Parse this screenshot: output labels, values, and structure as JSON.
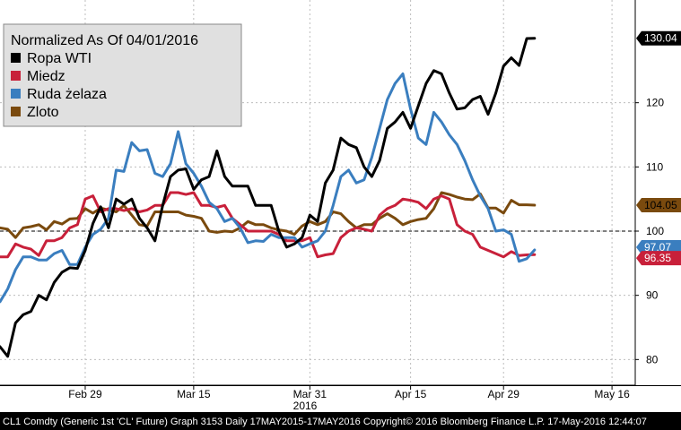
{
  "chart_data": {
    "type": "line",
    "title": "Normalized As Of 04/01/2016",
    "x_tick_labels": [
      "Feb 29",
      "Mar 15",
      "Mar 31",
      "Apr 15",
      "Apr 29",
      "May 16"
    ],
    "x_tick_positions": [
      11,
      25,
      40,
      53,
      65,
      79
    ],
    "x_range": [
      0,
      82
    ],
    "year_label": "2016",
    "y_tick_labels": [
      "80",
      "90",
      "100",
      "110",
      "120"
    ],
    "ylim": [
      76,
      136
    ],
    "reference_line": 100,
    "grid": true,
    "legend_position": "top-left",
    "series": [
      {
        "name": "Ropa WTI",
        "color": "#000000",
        "end_label": "130.04",
        "values": [
          [
            0,
            82
          ],
          [
            1,
            80.5
          ],
          [
            2,
            85.7
          ],
          [
            3,
            87
          ],
          [
            4,
            87.5
          ],
          [
            5,
            90
          ],
          [
            6,
            89.3
          ],
          [
            7,
            92
          ],
          [
            8,
            93.6
          ],
          [
            9,
            94.3
          ],
          [
            10,
            94.2
          ],
          [
            11,
            97
          ],
          [
            12,
            101.2
          ],
          [
            13,
            103.8
          ],
          [
            14,
            100.5
          ],
          [
            15,
            105
          ],
          [
            16,
            104.2
          ],
          [
            17,
            105
          ],
          [
            18,
            102
          ],
          [
            19,
            100.5
          ],
          [
            20,
            98.5
          ],
          [
            21,
            104
          ],
          [
            22,
            108.5
          ],
          [
            23,
            109.5
          ],
          [
            24,
            109.7
          ],
          [
            25,
            106.5
          ],
          [
            26,
            108
          ],
          [
            27,
            108.5
          ],
          [
            28,
            112.5
          ],
          [
            29,
            108.5
          ],
          [
            30,
            107
          ],
          [
            31,
            107
          ],
          [
            32,
            107
          ],
          [
            33,
            104
          ],
          [
            34,
            104
          ],
          [
            35,
            104
          ],
          [
            36,
            100
          ],
          [
            37,
            97.5
          ],
          [
            38,
            98
          ],
          [
            39,
            99
          ],
          [
            40,
            102.5
          ],
          [
            41,
            101.5
          ],
          [
            42,
            107.5
          ],
          [
            43,
            109.5
          ],
          [
            44,
            114.5
          ],
          [
            45,
            113.5
          ],
          [
            46,
            113
          ],
          [
            47,
            110
          ],
          [
            48,
            108.5
          ],
          [
            49,
            111
          ],
          [
            50,
            116
          ],
          [
            51,
            117
          ],
          [
            52,
            118.5
          ],
          [
            53,
            116
          ],
          [
            54,
            119.5
          ],
          [
            55,
            123
          ],
          [
            56,
            125
          ],
          [
            57,
            124.5
          ],
          [
            58,
            121.5
          ],
          [
            59,
            119
          ],
          [
            60,
            119.2
          ],
          [
            61,
            120.5
          ],
          [
            62,
            121
          ],
          [
            63,
            118.2
          ],
          [
            64,
            121.5
          ],
          [
            65,
            125.7
          ],
          [
            66,
            127
          ],
          [
            67,
            125.8
          ],
          [
            68,
            130
          ],
          [
            69,
            130.04
          ]
        ]
      },
      {
        "name": "Miedz",
        "color": "#c8203a",
        "end_label": "96.35",
        "values": [
          [
            0,
            96
          ],
          [
            1,
            96
          ],
          [
            2,
            98
          ],
          [
            3,
            97.5
          ],
          [
            4,
            97.2
          ],
          [
            5,
            96.2
          ],
          [
            6,
            98.5
          ],
          [
            7,
            98.5
          ],
          [
            8,
            99
          ],
          [
            9,
            100.5
          ],
          [
            10,
            101
          ],
          [
            11,
            105
          ],
          [
            12,
            105.5
          ],
          [
            13,
            103
          ],
          [
            14,
            103.5
          ],
          [
            15,
            103.5
          ],
          [
            16,
            103.2
          ],
          [
            17,
            103.5
          ],
          [
            18,
            103
          ],
          [
            19,
            103.3
          ],
          [
            20,
            104
          ],
          [
            21,
            104
          ],
          [
            22,
            106
          ],
          [
            23,
            106
          ],
          [
            24,
            105.7
          ],
          [
            25,
            106
          ],
          [
            26,
            104
          ],
          [
            27,
            104
          ],
          [
            28,
            103.7
          ],
          [
            29,
            104
          ],
          [
            30,
            102
          ],
          [
            31,
            101
          ],
          [
            32,
            100
          ],
          [
            33,
            100
          ],
          [
            34,
            100
          ],
          [
            35,
            100
          ],
          [
            36,
            99.5
          ],
          [
            37,
            98.5
          ],
          [
            38,
            98.5
          ],
          [
            39,
            98.5
          ],
          [
            40,
            99
          ],
          [
            41,
            96
          ],
          [
            42,
            96.3
          ],
          [
            43,
            96.5
          ],
          [
            44,
            99
          ],
          [
            45,
            100
          ],
          [
            46,
            100.5
          ],
          [
            47,
            100.3
          ],
          [
            48,
            100
          ],
          [
            49,
            102.5
          ],
          [
            50,
            103.5
          ],
          [
            51,
            104
          ],
          [
            52,
            105
          ],
          [
            53,
            104.8
          ],
          [
            54,
            104.5
          ],
          [
            55,
            103.5
          ],
          [
            56,
            105
          ],
          [
            57,
            105.5
          ],
          [
            58,
            105
          ],
          [
            59,
            101
          ],
          [
            60,
            100
          ],
          [
            61,
            99.5
          ],
          [
            62,
            97.5
          ],
          [
            63,
            97
          ],
          [
            64,
            96.5
          ],
          [
            65,
            96
          ],
          [
            66,
            96.8
          ],
          [
            67,
            96.2
          ],
          [
            68,
            96.3
          ],
          [
            69,
            96.35
          ]
        ]
      },
      {
        "name": "Ruda żelaza",
        "color": "#3a7ebf",
        "end_label": "97.07",
        "values": [
          [
            0,
            89
          ],
          [
            1,
            91
          ],
          [
            2,
            94
          ],
          [
            3,
            96
          ],
          [
            4,
            96
          ],
          [
            5,
            95.5
          ],
          [
            6,
            95.5
          ],
          [
            7,
            96.5
          ],
          [
            8,
            97
          ],
          [
            9,
            94.8
          ],
          [
            10,
            94.8
          ],
          [
            11,
            97.5
          ],
          [
            12,
            99.5
          ],
          [
            13,
            100.3
          ],
          [
            14,
            102
          ],
          [
            15,
            109.5
          ],
          [
            16,
            109.3
          ],
          [
            17,
            113.8
          ],
          [
            18,
            112.5
          ],
          [
            19,
            112.7
          ],
          [
            20,
            109
          ],
          [
            21,
            108.5
          ],
          [
            22,
            110.5
          ],
          [
            23,
            115.5
          ],
          [
            24,
            110.5
          ],
          [
            25,
            109
          ],
          [
            26,
            107
          ],
          [
            27,
            104.5
          ],
          [
            28,
            103.5
          ],
          [
            29,
            101.5
          ],
          [
            30,
            102
          ],
          [
            31,
            100.5
          ],
          [
            32,
            98.2
          ],
          [
            33,
            98.5
          ],
          [
            34,
            98.4
          ],
          [
            35,
            99.5
          ],
          [
            36,
            99
          ],
          [
            37,
            99
          ],
          [
            38,
            99
          ],
          [
            39,
            97.5
          ],
          [
            40,
            98
          ],
          [
            41,
            98.5
          ],
          [
            42,
            100
          ],
          [
            43,
            104
          ],
          [
            44,
            108.5
          ],
          [
            45,
            109.5
          ],
          [
            46,
            107.5
          ],
          [
            47,
            108
          ],
          [
            48,
            111.5
          ],
          [
            49,
            116
          ],
          [
            50,
            120.5
          ],
          [
            51,
            123
          ],
          [
            52,
            124.5
          ],
          [
            53,
            119
          ],
          [
            54,
            114.5
          ],
          [
            55,
            113.5
          ],
          [
            56,
            118.5
          ],
          [
            57,
            117
          ],
          [
            58,
            115
          ],
          [
            59,
            113.5
          ],
          [
            60,
            111
          ],
          [
            61,
            108
          ],
          [
            62,
            105.5
          ],
          [
            63,
            103.5
          ],
          [
            64,
            100
          ],
          [
            65,
            100.2
          ],
          [
            66,
            99.5
          ],
          [
            67,
            95.3
          ],
          [
            68,
            95.7
          ],
          [
            69,
            97.07
          ]
        ]
      },
      {
        "name": "Zloto",
        "color": "#7a4a0e",
        "end_label": "104.05",
        "values": [
          [
            0,
            100.5
          ],
          [
            1,
            100.3
          ],
          [
            2,
            99
          ],
          [
            3,
            100.5
          ],
          [
            4,
            100.7
          ],
          [
            5,
            101
          ],
          [
            6,
            100.2
          ],
          [
            7,
            101.5
          ],
          [
            8,
            101.1
          ],
          [
            9,
            101.9
          ],
          [
            10,
            102
          ],
          [
            11,
            103.5
          ],
          [
            12,
            102.8
          ],
          [
            13,
            103.6
          ],
          [
            14,
            103.3
          ],
          [
            15,
            103
          ],
          [
            16,
            104
          ],
          [
            17,
            102.5
          ],
          [
            18,
            101
          ],
          [
            19,
            100.8
          ],
          [
            20,
            103
          ],
          [
            21,
            103
          ],
          [
            22,
            103
          ],
          [
            23,
            103
          ],
          [
            24,
            102.5
          ],
          [
            25,
            102.3
          ],
          [
            26,
            102
          ],
          [
            27,
            100
          ],
          [
            28,
            99.8
          ],
          [
            29,
            100
          ],
          [
            30,
            99.9
          ],
          [
            31,
            100.5
          ],
          [
            32,
            101.5
          ],
          [
            33,
            101
          ],
          [
            34,
            101
          ],
          [
            35,
            100.5
          ],
          [
            36,
            100.2
          ],
          [
            37,
            100
          ],
          [
            38,
            99.5
          ],
          [
            39,
            100.8
          ],
          [
            40,
            101.5
          ],
          [
            41,
            101
          ],
          [
            42,
            101.5
          ],
          [
            43,
            103
          ],
          [
            44,
            102.7
          ],
          [
            45,
            101.5
          ],
          [
            46,
            100.5
          ],
          [
            47,
            101
          ],
          [
            48,
            101
          ],
          [
            49,
            102
          ],
          [
            50,
            102.7
          ],
          [
            51,
            102
          ],
          [
            52,
            101
          ],
          [
            53,
            101.5
          ],
          [
            54,
            101.8
          ],
          [
            55,
            102
          ],
          [
            56,
            103.5
          ],
          [
            57,
            106
          ],
          [
            58,
            105.7
          ],
          [
            59,
            105.3
          ],
          [
            60,
            105
          ],
          [
            61,
            104.9
          ],
          [
            62,
            105.8
          ],
          [
            63,
            103.6
          ],
          [
            64,
            103.6
          ],
          [
            65,
            102.8
          ],
          [
            66,
            104.8
          ],
          [
            67,
            104.1
          ],
          [
            68,
            104.1
          ],
          [
            69,
            104.05
          ]
        ]
      }
    ]
  },
  "footer": {
    "text": "CL1 Comdty (Generic 1st 'CL' Future) Graph 3153  Daily 17MAY2015-17MAY2016  Copyright© 2016 Bloomberg Finance L.P.  17-May-2016 12:44:07"
  },
  "colors": {
    "background": "#000000",
    "panel": "#ffffff",
    "grid": "#bbbbbb",
    "legend_bg": "#e0e0e0"
  }
}
